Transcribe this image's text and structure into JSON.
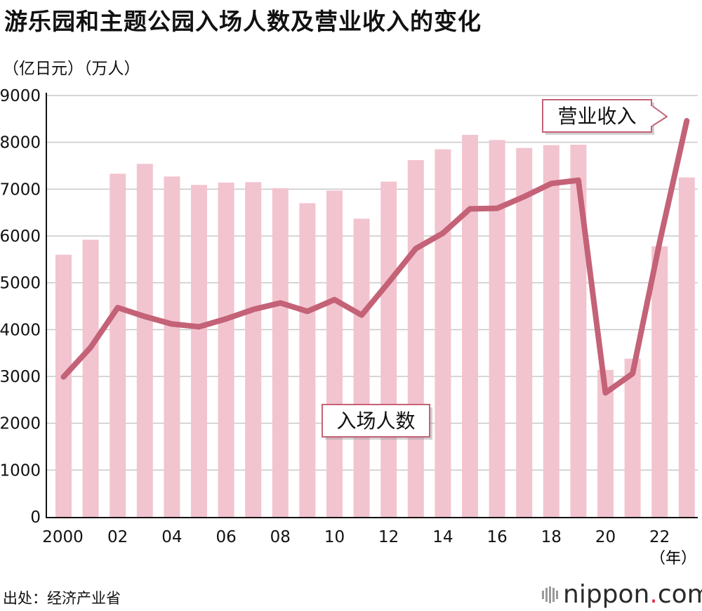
{
  "title": "游乐园和主题公园入场人数及营业收入的变化",
  "units_label": "（亿日元）（万人）",
  "source": "出处：经济产业省",
  "brand": {
    "name": "nippon",
    "dot": ".",
    "tld": "com"
  },
  "colors": {
    "bar": "#f2c4cf",
    "line": "#c46277",
    "grid": "#c8c8c8",
    "axis": "#111111",
    "callout_border": "#c46277"
  },
  "chart_data": {
    "type": "bar",
    "xlabel": "（年）",
    "ylabel": "",
    "ylim": [
      0,
      9000
    ],
    "yticks": [
      "0",
      "1000",
      "2000",
      "3000",
      "4000",
      "5000",
      "6000",
      "7000",
      "8000",
      "9000"
    ],
    "categories": [
      "2000",
      "2001",
      "2002",
      "2003",
      "2004",
      "2005",
      "2006",
      "2007",
      "2008",
      "2009",
      "2010",
      "2011",
      "2012",
      "2013",
      "2014",
      "2015",
      "2016",
      "2017",
      "2018",
      "2019",
      "2020",
      "2021",
      "2022",
      "2023"
    ],
    "xtick_labels": [
      "2000",
      "",
      "02",
      "",
      "04",
      "",
      "06",
      "",
      "08",
      "",
      "10",
      "",
      "12",
      "",
      "14",
      "",
      "16",
      "",
      "18",
      "",
      "20",
      "",
      "22",
      ""
    ],
    "series": [
      {
        "name": "入场人数",
        "type": "bar",
        "values": [
          5600,
          5920,
          7330,
          7540,
          7270,
          7090,
          7140,
          7150,
          7020,
          6700,
          6970,
          6370,
          7160,
          7620,
          7850,
          8160,
          8050,
          7880,
          7940,
          7950,
          3140,
          3380,
          5780,
          7250
        ]
      },
      {
        "name": "营业收入",
        "type": "line",
        "values": [
          2990,
          3620,
          4470,
          4280,
          4120,
          4060,
          4230,
          4430,
          4570,
          4390,
          4640,
          4310,
          5010,
          5730,
          6060,
          6580,
          6590,
          6840,
          7120,
          7190,
          2650,
          3060,
          5870,
          8460
        ]
      }
    ],
    "annotations": [
      {
        "text": "营业收入",
        "target": "营业收入"
      },
      {
        "text": "入场人数",
        "target": "入场人数"
      }
    ]
  }
}
